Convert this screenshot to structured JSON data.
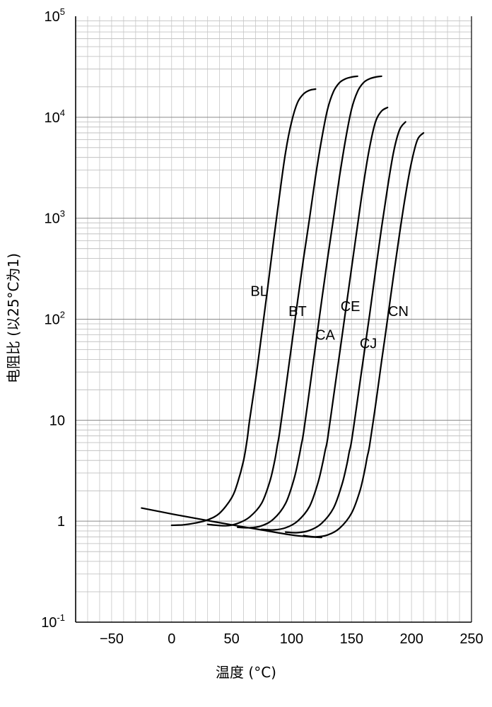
{
  "chart_data": {
    "type": "line",
    "xlabel": "温度 (°C)",
    "ylabel": "电阻比 (以25°C为1)",
    "xlim": [
      -80,
      250
    ],
    "ylim": [
      0.1,
      100000
    ],
    "y_scale": "log",
    "grid": "major and minor (log decades)",
    "x_ticks": [
      {
        "value": -50,
        "label": "−50"
      },
      {
        "value": 0,
        "label": "0"
      },
      {
        "value": 50,
        "label": "50"
      },
      {
        "value": 100,
        "label": "100"
      },
      {
        "value": 150,
        "label": "150"
      },
      {
        "value": 200,
        "label": "200"
      },
      {
        "value": 250,
        "label": "250"
      }
    ],
    "y_ticks": [
      {
        "value": 0.1,
        "base": "10",
        "exp": "-1"
      },
      {
        "value": 1,
        "base": "1",
        "exp": ""
      },
      {
        "value": 10,
        "base": "10",
        "exp": ""
      },
      {
        "value": 100,
        "base": "10",
        "exp": "2"
      },
      {
        "value": 1000,
        "base": "10",
        "exp": "3"
      },
      {
        "value": 10000,
        "base": "10",
        "exp": "4"
      },
      {
        "value": 100000,
        "base": "10",
        "exp": "5"
      }
    ],
    "series": [
      {
        "name": "BL",
        "x": [
          0,
          10,
          20,
          30,
          40,
          50,
          55,
          60,
          63,
          65,
          70,
          75,
          80,
          85,
          90,
          95,
          100,
          105,
          110,
          115,
          120
        ],
        "y": [
          0.91,
          0.92,
          0.96,
          1.03,
          1.2,
          1.7,
          2.4,
          4.0,
          6.5,
          10,
          25,
          70,
          200,
          600,
          1700,
          4500,
          9000,
          14000,
          17000,
          18500,
          19000
        ]
      },
      {
        "name": "BT",
        "x": [
          30,
          45,
          55,
          65,
          75,
          82,
          86,
          88,
          90,
          95,
          100,
          105,
          110,
          115,
          120,
          125,
          130,
          135,
          140,
          145,
          150,
          155
        ],
        "y": [
          0.93,
          0.9,
          0.95,
          1.1,
          1.5,
          2.5,
          4.0,
          5.5,
          7.5,
          20,
          55,
          150,
          400,
          1000,
          2600,
          6000,
          12000,
          18000,
          22000,
          24000,
          25000,
          25500
        ]
      },
      {
        "name": "CA",
        "x": [
          55,
          65,
          75,
          85,
          95,
          102,
          106,
          108,
          110,
          115,
          120,
          125,
          130,
          135,
          140,
          145,
          150,
          155,
          160,
          165,
          170,
          175
        ],
        "y": [
          0.87,
          0.86,
          0.9,
          1.05,
          1.5,
          2.6,
          4.2,
          5.6,
          7.5,
          20,
          55,
          150,
          400,
          1000,
          2600,
          6000,
          12000,
          18000,
          22000,
          24000,
          25000,
          25500
        ]
      },
      {
        "name": "CE",
        "x": [
          75,
          85,
          95,
          105,
          115,
          122,
          126,
          128,
          130,
          135,
          140,
          145,
          150,
          155,
          160,
          165,
          170,
          175,
          180
        ],
        "y": [
          0.83,
          0.82,
          0.86,
          1.0,
          1.4,
          2.4,
          3.8,
          5.0,
          6.5,
          17,
          45,
          120,
          320,
          850,
          2200,
          5000,
          9000,
          11500,
          12500
        ]
      },
      {
        "name": "CJ",
        "x": [
          95,
          105,
          115,
          125,
          135,
          142,
          146,
          148,
          150,
          155,
          160,
          165,
          170,
          175,
          180,
          185,
          190,
          195
        ],
        "y": [
          0.78,
          0.77,
          0.81,
          0.95,
          1.35,
          2.3,
          3.6,
          4.8,
          6.2,
          16,
          42,
          110,
          300,
          800,
          2000,
          4500,
          7500,
          9000
        ]
      },
      {
        "name": "CN",
        "x": [
          110,
          120,
          130,
          140,
          150,
          157,
          161,
          163,
          165,
          170,
          175,
          180,
          185,
          190,
          195,
          200,
          205,
          210
        ],
        "y": [
          0.72,
          0.7,
          0.73,
          0.85,
          1.2,
          2.0,
          3.2,
          4.3,
          5.6,
          14,
          38,
          100,
          270,
          700,
          1700,
          3600,
          6000,
          7000
        ]
      },
      {
        "name": "",
        "x": [
          -25,
          0,
          25,
          50,
          75,
          100,
          115,
          125
        ],
        "y": [
          1.35,
          1.18,
          1.04,
          0.92,
          0.82,
          0.73,
          0.7,
          0.69
        ]
      }
    ],
    "labels": [
      {
        "text": "BL",
        "x": 73,
        "y": 190
      },
      {
        "text": "BT",
        "x": 105,
        "y": 120
      },
      {
        "text": "CA",
        "x": 128,
        "y": 70
      },
      {
        "text": "CE",
        "x": 149,
        "y": 135
      },
      {
        "text": "CJ",
        "x": 164,
        "y": 58
      },
      {
        "text": "CN",
        "x": 189,
        "y": 120
      }
    ]
  }
}
